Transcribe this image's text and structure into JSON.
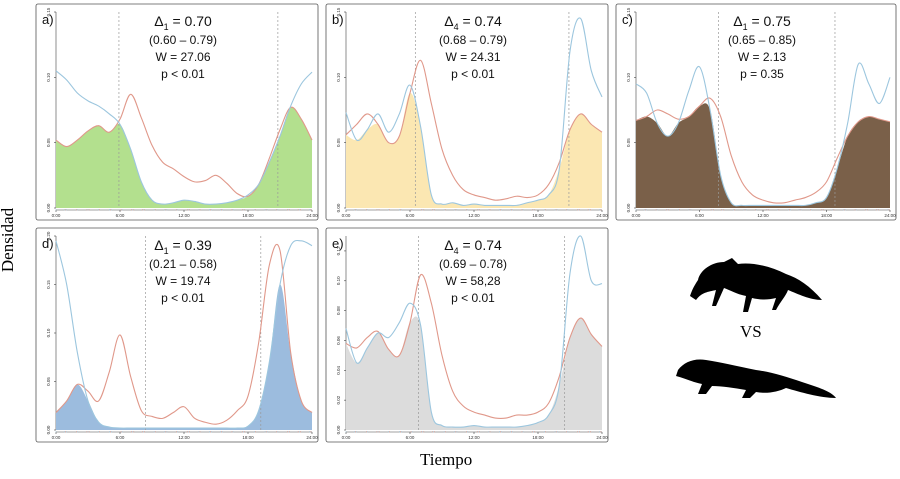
{
  "figure": {
    "ylabel": "Densidad",
    "xlabel": "Tiempo",
    "vs_label": "VS",
    "silhouettes": [
      "fox-silhouette",
      "weasel-silhouette"
    ]
  },
  "chart_data": [
    {
      "type": "area",
      "panel": "a)",
      "fill_color": "#b3e08e",
      "delta_symbol": "Δ",
      "delta_sub": "1",
      "delta_value": "= 0.70",
      "ci": "(0.60 – 0.79)",
      "w": "W = 27.06",
      "p": "p < 0.01",
      "ylim": [
        0,
        0.15
      ],
      "yticks": [
        "0.00",
        "0.05",
        "0.10",
        "0.15"
      ],
      "xticks": [
        "0:00",
        "6:00",
        "12:00",
        "18:00",
        "24:00"
      ],
      "sunrise": 5.9,
      "sunset": 20.8,
      "x": [
        0,
        1,
        2,
        3,
        4,
        5,
        6,
        7,
        8,
        9,
        10,
        11,
        12,
        13,
        14,
        15,
        16,
        17,
        18,
        19,
        20,
        21,
        22,
        23,
        24
      ],
      "series": [
        {
          "name": "species_blue",
          "color": "#9cc6de",
          "values": [
            0.105,
            0.098,
            0.088,
            0.082,
            0.078,
            0.072,
            0.064,
            0.045,
            0.02,
            0.006,
            0.003,
            0.004,
            0.006,
            0.005,
            0.003,
            0.003,
            0.004,
            0.006,
            0.01,
            0.018,
            0.035,
            0.055,
            0.078,
            0.095,
            0.104
          ]
        },
        {
          "name": "species_red",
          "color": "#e0988a",
          "values": [
            0.052,
            0.047,
            0.052,
            0.059,
            0.063,
            0.058,
            0.068,
            0.087,
            0.069,
            0.048,
            0.035,
            0.03,
            0.024,
            0.02,
            0.021,
            0.025,
            0.019,
            0.011,
            0.009,
            0.018,
            0.038,
            0.06,
            0.077,
            0.068,
            0.052
          ]
        }
      ]
    },
    {
      "type": "area",
      "panel": "b)",
      "fill_color": "#fbe7b2",
      "delta_symbol": "Δ",
      "delta_sub": "4",
      "delta_value": "= 0.74",
      "ci": "(0.68 – 0.79)",
      "w": "W = 24.31",
      "p": "p < 0.01",
      "ylim": [
        0,
        0.15
      ],
      "yticks": [
        "0.00",
        "0.05",
        "0.10",
        "0.15"
      ],
      "xticks": [
        "0:00",
        "6:00",
        "12:00",
        "18:00",
        "24:00"
      ],
      "sunrise": 6.5,
      "sunset": 20.9,
      "x": [
        0,
        1,
        2,
        3,
        4,
        5,
        6,
        7,
        8,
        9,
        10,
        11,
        12,
        13,
        14,
        15,
        16,
        17,
        18,
        19,
        20,
        21,
        22,
        23,
        24
      ],
      "series": [
        {
          "name": "species_blue",
          "color": "#9cc6de",
          "values": [
            0.073,
            0.052,
            0.06,
            0.072,
            0.058,
            0.072,
            0.094,
            0.062,
            0.01,
            0.003,
            0.004,
            0.002,
            0.003,
            0.002,
            0.002,
            0.002,
            0.002,
            0.004,
            0.006,
            0.01,
            0.03,
            0.12,
            0.145,
            0.105,
            0.085
          ]
        },
        {
          "name": "species_red",
          "color": "#e0988a",
          "values": [
            0.056,
            0.064,
            0.072,
            0.064,
            0.05,
            0.055,
            0.088,
            0.113,
            0.08,
            0.045,
            0.025,
            0.014,
            0.01,
            0.008,
            0.006,
            0.007,
            0.009,
            0.008,
            0.01,
            0.018,
            0.035,
            0.06,
            0.072,
            0.064,
            0.058
          ]
        }
      ]
    },
    {
      "type": "area",
      "panel": "c)",
      "fill_color": "#7a6049",
      "delta_symbol": "Δ",
      "delta_sub": "1",
      "delta_value": "= 0.75",
      "ci": "(0.65 – 0.85)",
      "w": "W = 2.13",
      "p": "p = 0.35",
      "ylim": [
        0,
        0.15
      ],
      "yticks": [
        "0.00",
        "0.05",
        "0.10",
        "0.15"
      ],
      "xticks": [
        "0:00",
        "6:00",
        "12:00",
        "18:00",
        "24:00"
      ],
      "sunrise": 7.8,
      "sunset": 18.8,
      "x": [
        0,
        1,
        2,
        3,
        4,
        5,
        6,
        7,
        8,
        9,
        10,
        11,
        12,
        13,
        14,
        15,
        16,
        17,
        18,
        19,
        20,
        21,
        22,
        23,
        24
      ],
      "series": [
        {
          "name": "species_blue",
          "color": "#9cc6de",
          "values": [
            0.095,
            0.088,
            0.065,
            0.055,
            0.065,
            0.09,
            0.108,
            0.075,
            0.025,
            0.004,
            0.002,
            0.002,
            0.002,
            0.002,
            0.002,
            0.002,
            0.002,
            0.004,
            0.008,
            0.03,
            0.065,
            0.11,
            0.095,
            0.08,
            0.1
          ]
        },
        {
          "name": "species_red",
          "color": "#e0988a",
          "values": [
            0.067,
            0.07,
            0.075,
            0.072,
            0.068,
            0.07,
            0.078,
            0.084,
            0.07,
            0.04,
            0.02,
            0.01,
            0.006,
            0.004,
            0.004,
            0.006,
            0.008,
            0.012,
            0.02,
            0.038,
            0.055,
            0.066,
            0.07,
            0.068,
            0.066
          ]
        }
      ]
    },
    {
      "type": "area",
      "panel": "d)",
      "fill_color": "#9cbcde",
      "delta_symbol": "Δ",
      "delta_sub": "1",
      "delta_value": "= 0.39",
      "ci": "(0.21 – 0.58)",
      "w": "W = 19.74",
      "p": "p < 0.01",
      "ylim": [
        0,
        0.2
      ],
      "yticks": [
        "0.00",
        "0.05",
        "0.10",
        "0.15",
        "0.20"
      ],
      "xticks": [
        "0:00",
        "6:00",
        "12:00",
        "18:00",
        "24:00"
      ],
      "sunrise": 8.4,
      "sunset": 19.2,
      "x": [
        0,
        1,
        2,
        3,
        4,
        5,
        6,
        7,
        8,
        9,
        10,
        11,
        12,
        13,
        14,
        15,
        16,
        17,
        18,
        19,
        20,
        21,
        22,
        23,
        24
      ],
      "series": [
        {
          "name": "species_blue",
          "color": "#9cc6de",
          "values": [
            0.195,
            0.15,
            0.08,
            0.03,
            0.008,
            0.003,
            0.002,
            0.002,
            0.002,
            0.002,
            0.002,
            0.002,
            0.002,
            0.002,
            0.002,
            0.002,
            0.002,
            0.002,
            0.004,
            0.02,
            0.07,
            0.15,
            0.19,
            0.195,
            0.19
          ]
        },
        {
          "name": "species_red",
          "color": "#e0988a",
          "values": [
            0.018,
            0.03,
            0.047,
            0.04,
            0.03,
            0.06,
            0.098,
            0.055,
            0.02,
            0.014,
            0.012,
            0.018,
            0.024,
            0.012,
            0.008,
            0.006,
            0.01,
            0.02,
            0.035,
            0.09,
            0.17,
            0.185,
            0.08,
            0.03,
            0.018
          ]
        }
      ]
    },
    {
      "type": "area",
      "panel": "e)",
      "fill_color": "#dcdcdc",
      "delta_symbol": "Δ",
      "delta_sub": "4",
      "delta_value": "= 0.74",
      "ci": "(0.69 – 0.78)",
      "w": "W = 58,28",
      "p": "p < 0.01",
      "ylim": [
        0,
        0.13
      ],
      "yticks": [
        "0.00",
        "0.02",
        "0.04",
        "0.06",
        "0.08",
        "0.10",
        "0.12"
      ],
      "xticks": [
        "0:00",
        "6:00",
        "12:00",
        "18:00",
        "24:00"
      ],
      "sunrise": 6.8,
      "sunset": 20.5,
      "x": [
        0,
        1,
        2,
        3,
        4,
        5,
        6,
        7,
        8,
        9,
        10,
        11,
        12,
        13,
        14,
        15,
        16,
        17,
        18,
        19,
        20,
        21,
        22,
        23,
        24
      ],
      "series": [
        {
          "name": "species_blue",
          "color": "#9cc6de",
          "values": [
            0.068,
            0.045,
            0.055,
            0.065,
            0.062,
            0.072,
            0.085,
            0.07,
            0.012,
            0.003,
            0.002,
            0.002,
            0.003,
            0.002,
            0.002,
            0.002,
            0.002,
            0.003,
            0.005,
            0.01,
            0.03,
            0.105,
            0.13,
            0.1,
            0.098
          ]
        },
        {
          "name": "species_red",
          "color": "#e0988a",
          "values": [
            0.058,
            0.055,
            0.062,
            0.066,
            0.054,
            0.05,
            0.072,
            0.104,
            0.085,
            0.05,
            0.026,
            0.016,
            0.012,
            0.01,
            0.008,
            0.008,
            0.01,
            0.01,
            0.012,
            0.018,
            0.036,
            0.062,
            0.075,
            0.064,
            0.056
          ]
        }
      ]
    }
  ]
}
